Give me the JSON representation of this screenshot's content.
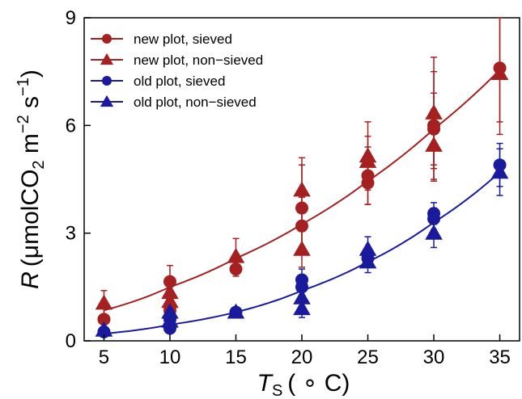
{
  "chart_data": {
    "type": "scatter",
    "x_axis": {
      "label_symbol": "T",
      "label_subscript": "S",
      "label_unit": "( ∘ C)",
      "range": [
        3.5,
        36.5
      ],
      "ticks": [
        5,
        10,
        15,
        20,
        25,
        30,
        35
      ],
      "tick_labels": [
        "5",
        "10",
        "15",
        "20",
        "25",
        "30",
        "35"
      ]
    },
    "y_axis": {
      "label_symbol": "R",
      "label_unit_a": "(μmolCO",
      "label_unit_sub": "2",
      "label_unit_b": " m",
      "label_unit_sup1": "−2",
      "label_unit_c": " s",
      "label_unit_sup2": "−1",
      "label_unit_d": ")",
      "range": [
        0,
        9
      ],
      "ticks": [
        0,
        3,
        6,
        9
      ],
      "tick_labels": [
        "0",
        "3",
        "6",
        "9"
      ]
    },
    "grid": false,
    "legend_position": "top-left",
    "series": [
      {
        "name": "new plot, sieved",
        "color": "#a52020",
        "marker": "circle",
        "points": [
          {
            "x": 5,
            "y": 0.6,
            "err": 0.3
          },
          {
            "x": 10,
            "y": 1.65,
            "err": 0.45
          },
          {
            "x": 10,
            "y": 0.85,
            "err": 0.35
          },
          {
            "x": 15,
            "y": 2.0,
            "err": 0.2
          },
          {
            "x": 20,
            "y": 3.7,
            "err": 1.2
          },
          {
            "x": 20,
            "y": 3.2,
            "err": 0.8
          },
          {
            "x": 25,
            "y": 4.6,
            "err": 0.8
          },
          {
            "x": 25,
            "y": 4.4,
            "err": 0.6
          },
          {
            "x": 30,
            "y": 6.0,
            "err": 1.5
          },
          {
            "x": 30,
            "y": 5.9,
            "err": 1.0
          },
          {
            "x": 35,
            "y": 7.6,
            "err": 1.5
          }
        ]
      },
      {
        "name": "new plot, non−sieved",
        "color": "#a52020",
        "marker": "triangle",
        "points": [
          {
            "x": 5,
            "y": 1.05,
            "err": 0.35
          },
          {
            "x": 10,
            "y": 1.35,
            "err": 0.4
          },
          {
            "x": 10,
            "y": 1.1,
            "err": 0.3
          },
          {
            "x": 15,
            "y": 2.35,
            "err": 0.5
          },
          {
            "x": 20,
            "y": 4.2,
            "err": 0.9
          },
          {
            "x": 20,
            "y": 2.55,
            "err": 0.5
          },
          {
            "x": 25,
            "y": 5.15,
            "err": 0.95
          },
          {
            "x": 25,
            "y": 5.0,
            "err": 0.7
          },
          {
            "x": 30,
            "y": 6.35,
            "err": 1.55
          },
          {
            "x": 30,
            "y": 5.45,
            "err": 1.0
          },
          {
            "x": 35,
            "y": 7.45,
            "err": 1.7
          }
        ]
      },
      {
        "name": "old plot, sieved",
        "color": "#1a1a9c",
        "marker": "circle",
        "points": [
          {
            "x": 5,
            "y": 0.25,
            "err": 0.1
          },
          {
            "x": 10,
            "y": 0.35,
            "err": 0.1
          },
          {
            "x": 10,
            "y": 0.6,
            "err": 0.15
          },
          {
            "x": 15,
            "y": 0.8,
            "err": 0.1
          },
          {
            "x": 20,
            "y": 1.7,
            "err": 0.3
          },
          {
            "x": 20,
            "y": 1.5,
            "err": 0.3
          },
          {
            "x": 25,
            "y": 2.3,
            "err": 0.25
          },
          {
            "x": 30,
            "y": 3.55,
            "err": 0.3
          },
          {
            "x": 30,
            "y": 3.4,
            "err": 0.3
          },
          {
            "x": 35,
            "y": 4.9,
            "err": 0.6
          }
        ]
      },
      {
        "name": "old plot, non−sieved",
        "color": "#1a1a9c",
        "marker": "triangle",
        "points": [
          {
            "x": 5,
            "y": 0.3,
            "err": 0.1
          },
          {
            "x": 10,
            "y": 0.55,
            "err": 0.15
          },
          {
            "x": 10,
            "y": 0.8,
            "err": 0.2
          },
          {
            "x": 15,
            "y": 0.8,
            "err": 0.1
          },
          {
            "x": 20,
            "y": 1.2,
            "err": 0.3
          },
          {
            "x": 20,
            "y": 0.9,
            "err": 0.25
          },
          {
            "x": 25,
            "y": 2.55,
            "err": 0.35
          },
          {
            "x": 25,
            "y": 2.2,
            "err": 0.3
          },
          {
            "x": 30,
            "y": 3.0,
            "err": 0.4
          },
          {
            "x": 35,
            "y": 4.7,
            "err": 0.65
          }
        ]
      }
    ],
    "fits": [
      {
        "color": "#a52020",
        "x_start": 5,
        "x_end": 35,
        "y_at": [
          [
            5,
            0.85
          ],
          [
            10,
            1.5
          ],
          [
            15,
            2.3
          ],
          [
            20,
            3.25
          ],
          [
            25,
            4.45
          ],
          [
            30,
            5.9
          ],
          [
            35,
            7.55
          ]
        ]
      },
      {
        "color": "#1a1a9c",
        "x_start": 5,
        "x_end": 35,
        "y_at": [
          [
            5,
            0.2
          ],
          [
            10,
            0.45
          ],
          [
            15,
            0.8
          ],
          [
            20,
            1.4
          ],
          [
            25,
            2.2
          ],
          [
            30,
            3.3
          ],
          [
            35,
            4.7
          ]
        ]
      }
    ]
  }
}
